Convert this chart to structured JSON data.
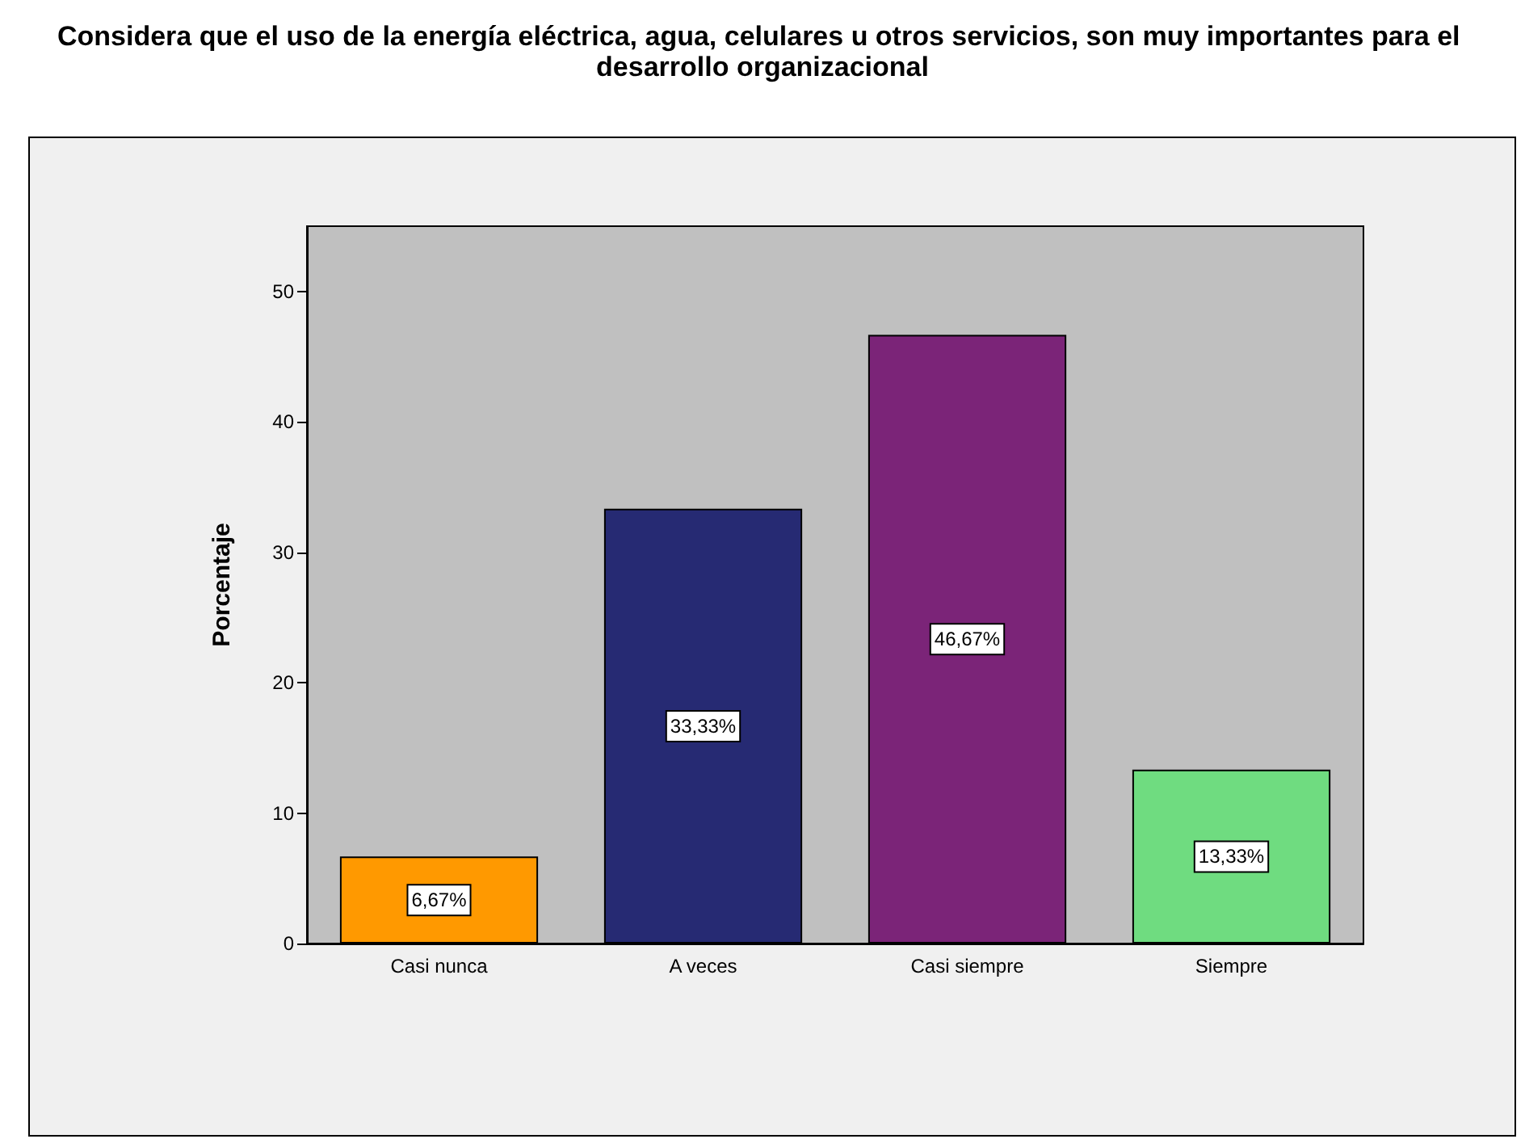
{
  "chart_data": {
    "type": "bar",
    "title": "Considera que el uso de la energía eléctrica, agua, celulares u otros servicios, son muy importantes para el desarrollo organizacional",
    "ylabel": "Porcentaje",
    "categories": [
      "Casi nunca",
      "A veces",
      "Casi siempre",
      "Siempre"
    ],
    "values": [
      6.67,
      33.33,
      46.67,
      13.33
    ],
    "colors": [
      "#ff9900",
      "#262a73",
      "#7b2478",
      "#6fdc80"
    ],
    "value_labels": [
      "6,67%",
      "33,33%",
      "46,67%",
      "13,33%"
    ],
    "ylim": [
      0,
      55
    ],
    "yticks": [
      0,
      10,
      20,
      30,
      40,
      50
    ],
    "grid": false
  }
}
